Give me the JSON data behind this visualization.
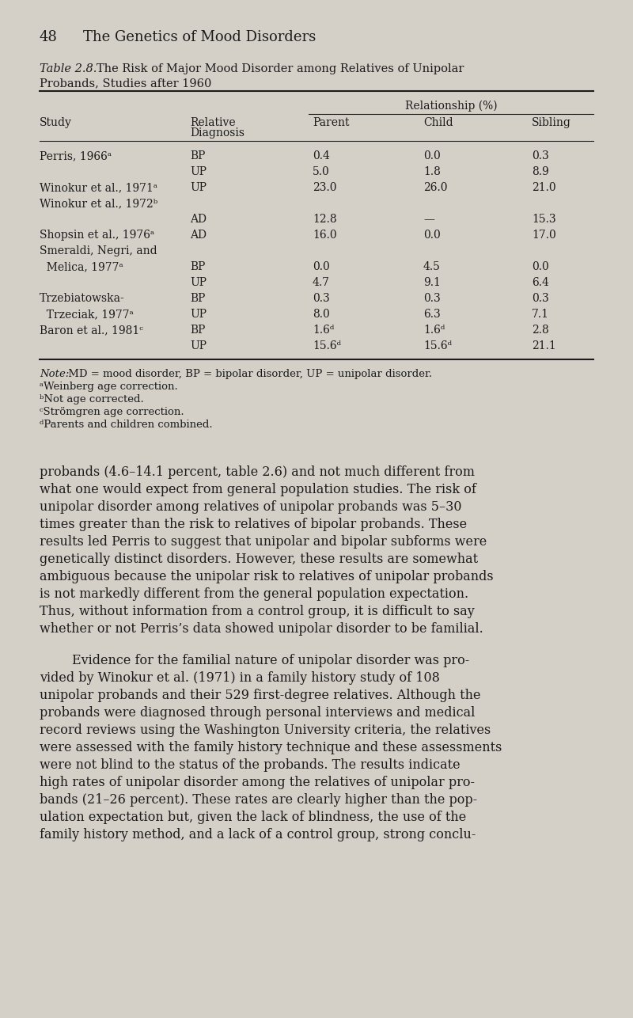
{
  "page_number": "48",
  "page_header": "The Genetics of Mood Disorders",
  "table_caption_italic": "Table 2.8.",
  "table_caption_rest": "   The Risk of Major Mood Disorder among Relatives of Unipolar",
  "table_caption_line2": "Probands, Studies after 1960",
  "col_header_group": "Relationship (%)",
  "table_rows": [
    [
      "Perris, 1966ᵃ",
      "BP",
      "0.4",
      "0.0",
      "0.3"
    ],
    [
      "",
      "UP",
      "5.0",
      "1.8",
      "8.9"
    ],
    [
      "Winokur et al., 1971ᵃ",
      "UP",
      "23.0",
      "26.0",
      "21.0"
    ],
    [
      "Winokur et al., 1972ᵇ",
      "",
      "",
      "",
      ""
    ],
    [
      "",
      "AD",
      "12.8",
      "—",
      "15.3"
    ],
    [
      "Shopsin et al., 1976ᵃ",
      "AD",
      "16.0",
      "0.0",
      "17.0"
    ],
    [
      "Smeraldi, Negri, and",
      "",
      "",
      "",
      ""
    ],
    [
      "  Melica, 1977ᵃ",
      "BP",
      "0.0",
      "4.5",
      "0.0"
    ],
    [
      "",
      "UP",
      "4.7",
      "9.1",
      "6.4"
    ],
    [
      "Trzebiatowska-",
      "BP",
      "0.3",
      "0.3",
      "0.3"
    ],
    [
      "  Trzeciak, 1977ᵃ",
      "UP",
      "8.0",
      "6.3",
      "7.1"
    ],
    [
      "Baron et al., 1981ᶜ",
      "BP",
      "1.6ᵈ",
      "1.6ᵈ",
      "2.8"
    ],
    [
      "",
      "UP",
      "15.6ᵈ",
      "15.6ᵈ",
      "21.1"
    ]
  ],
  "notes": [
    [
      "italic",
      "Note:"
    ],
    [
      " MD = mood disorder, BP = bipolar disorder, UP = unipolar disorder."
    ],
    [
      "ᵃWeinberg age correction."
    ],
    [
      "ᵇNot age corrected."
    ],
    [
      "ᶜStrömgren age correction."
    ],
    [
      "ᵈParents and children combined."
    ]
  ],
  "para1_lines": [
    "probands (4.6–14.1 percent, table 2.6) and not much different from",
    "what one would expect from general population studies. The risk of",
    "unipolar disorder among relatives of unipolar probands was 5–30",
    "times greater than the risk to relatives of bipolar probands. These",
    "results led Perris to suggest that unipolar and bipolar subforms were",
    "genetically distinct disorders. However, these results are somewhat",
    "ambiguous because the unipolar risk to relatives of unipolar probands",
    "is not markedly different from the general population expectation.",
    "Thus, without information from a control group, it is difficult to say",
    "whether or not Perris’s data showed unipolar disorder to be familial."
  ],
  "para2_lines": [
    "        Evidence for the familial nature of unipolar disorder was pro-",
    "vided by Winokur et al. (1971) in a family history study of 108",
    "unipolar probands and their 529 first-degree relatives. Although the",
    "probands were diagnosed through personal interviews and medical",
    "record reviews using the Washington University criteria, the relatives",
    "were assessed with the family history technique and these assessments",
    "were not blind to the status of the probands. The results indicate",
    "high rates of unipolar disorder among the relatives of unipolar pro-",
    "bands (21–26 percent). These rates are clearly higher than the pop-",
    "ulation expectation but, given the lack of blindness, the use of the",
    "family history method, and a lack of a control group, strong conclu-"
  ],
  "bg_color": "#d4d0c8",
  "text_color": "#1c1c1c"
}
